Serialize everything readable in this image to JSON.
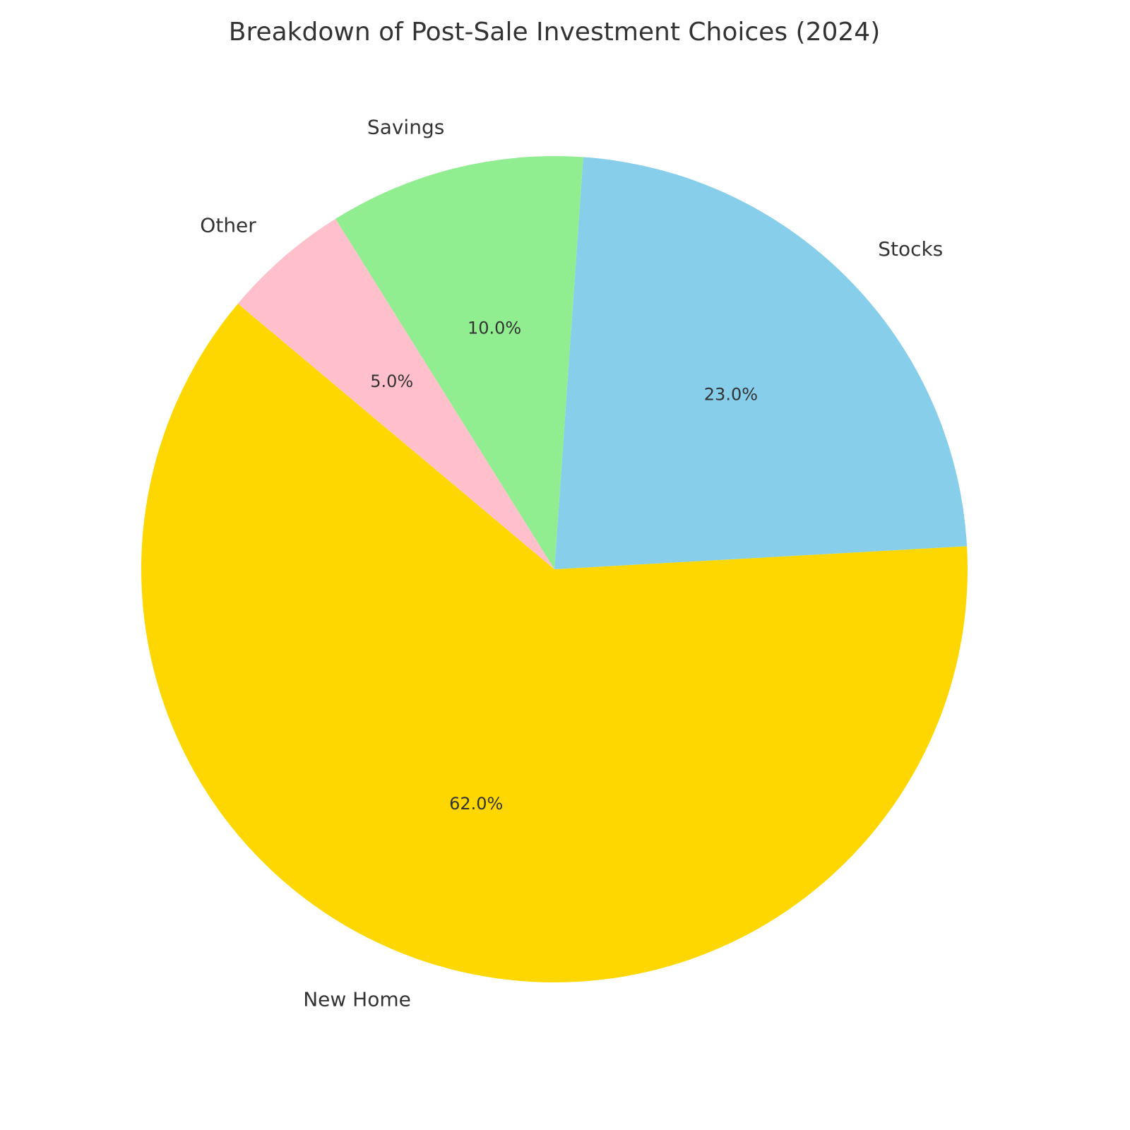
{
  "chart_data": {
    "type": "pie",
    "title": "Breakdown of Post-Sale Investment Choices (2024)",
    "categories": [
      "New Home",
      "Stocks",
      "Savings",
      "Other"
    ],
    "values": [
      62,
      23,
      10,
      5
    ],
    "value_labels": [
      "62.0%",
      "23.0%",
      "10.0%",
      "5.0%"
    ],
    "colors": [
      "#FFD700",
      "#87CEEB",
      "#90EE90",
      "#FFC0CB"
    ]
  }
}
